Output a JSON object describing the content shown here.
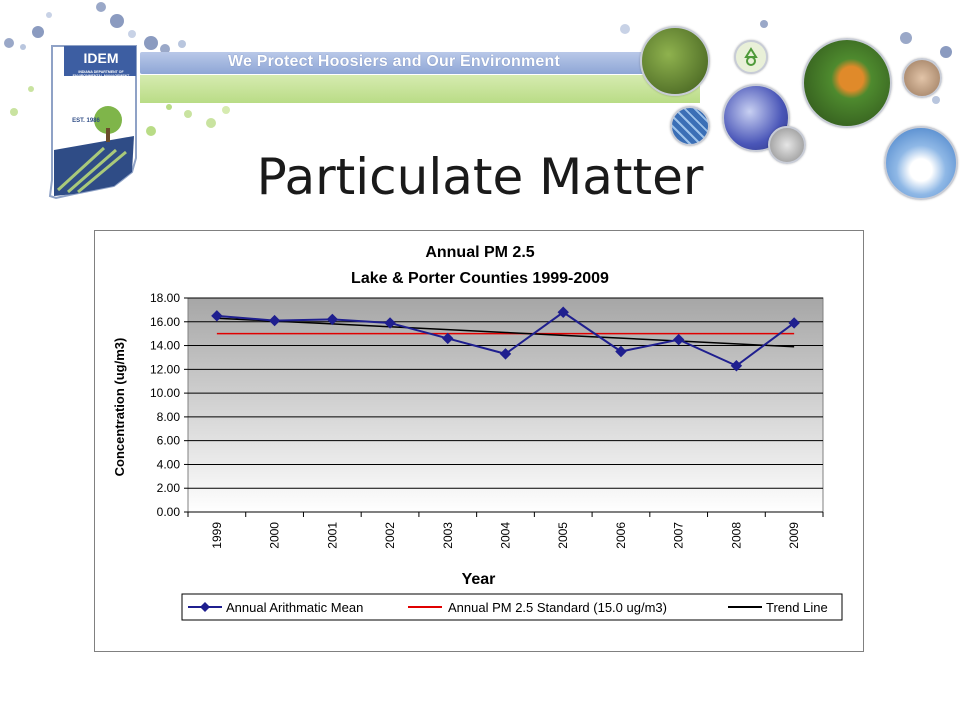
{
  "header": {
    "logo_text": "IDEM",
    "logo_subtitle": "INDIANA DEPARTMENT OF ENVIRONMENTAL MANAGEMENT",
    "logo_est": "EST. 1986",
    "slogan": "We Protect Hoosiers and Our Environment",
    "photo_icons": [
      "fern-photo",
      "recycle-icon",
      "butterfly-photo",
      "handshake-photo",
      "water-photo",
      "solar-panel-photo",
      "metal-cans-photo",
      "sky-clouds-photo"
    ]
  },
  "slide": {
    "title": "Particulate Matter"
  },
  "chart_data": {
    "type": "line",
    "title": "Annual PM 2.5",
    "subtitle": "Lake & Porter Counties 1999-2009",
    "xlabel": "Year",
    "ylabel": "Concentration (ug/m3)",
    "categories": [
      "1999",
      "2000",
      "2001",
      "2002",
      "2003",
      "2004",
      "2005",
      "2006",
      "2007",
      "2008",
      "2009"
    ],
    "ylim": [
      0,
      18
    ],
    "yticks": [
      "0.00",
      "2.00",
      "4.00",
      "6.00",
      "8.00",
      "10.00",
      "12.00",
      "14.00",
      "16.00",
      "18.00"
    ],
    "grid": true,
    "legend_position": "bottom",
    "series": [
      {
        "name": "Annual Arithmatic Mean",
        "color": "#1f1f8f",
        "marker": "diamond",
        "values": [
          16.5,
          16.1,
          16.2,
          15.9,
          14.6,
          13.3,
          16.8,
          13.5,
          14.5,
          12.3,
          15.9
        ]
      },
      {
        "name": "Annual PM 2.5 Standard (15.0 ug/m3)",
        "color": "#e00000",
        "values": [
          15.0,
          15.0,
          15.0,
          15.0,
          15.0,
          15.0,
          15.0,
          15.0,
          15.0,
          15.0,
          15.0
        ]
      },
      {
        "name": "Trend Line",
        "color": "#000000",
        "values": [
          16.3,
          16.06,
          15.82,
          15.58,
          15.34,
          15.1,
          14.86,
          14.62,
          14.38,
          14.14,
          13.9
        ]
      }
    ],
    "colors": {
      "plot_bg_top": "#a6a6a6",
      "plot_bg_bottom": "#ffffff"
    }
  }
}
